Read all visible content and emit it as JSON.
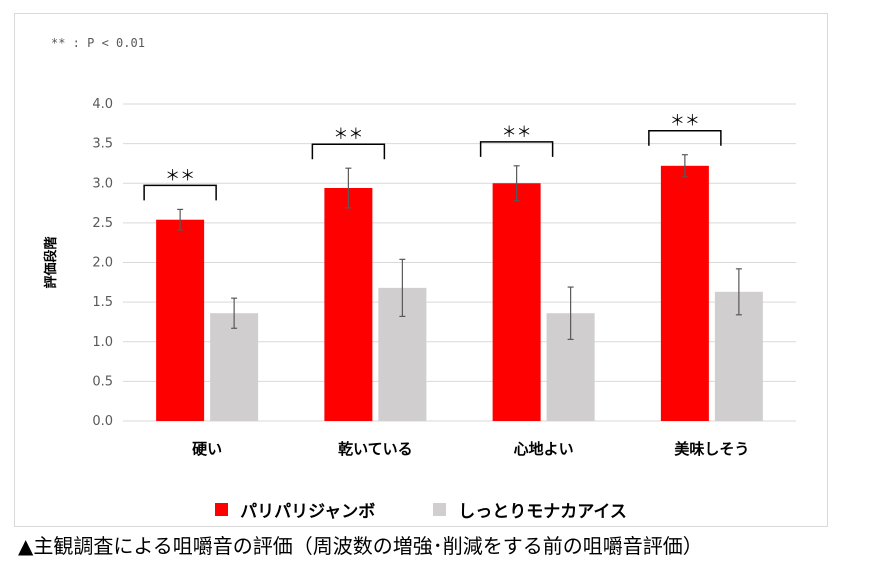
{
  "significance_note": "** : P < 0.01",
  "caption": "▲主観調査による咀嚼音の評価（周波数の増強･削減をする前の咀嚼音評価）",
  "chart_data": {
    "type": "bar",
    "title": "",
    "xlabel": "",
    "ylabel": "評価段階",
    "ylim": [
      0,
      4.0
    ],
    "yticks": [
      "0.0",
      "0.5",
      "1.0",
      "1.5",
      "2.0",
      "2.5",
      "3.0",
      "3.5",
      "4.0"
    ],
    "categories": [
      "硬い",
      "乾いている",
      "心地よい",
      "美味しそう"
    ],
    "series": [
      {
        "name": "パリパリジャンボ",
        "color": "#ff0000",
        "values": [
          2.54,
          2.94,
          3.0,
          3.22
        ],
        "errors": [
          0.13,
          0.25,
          0.22,
          0.14
        ]
      },
      {
        "name": "しっとりモナカアイス",
        "color": "#d0cece",
        "values": [
          1.36,
          1.68,
          1.36,
          1.63
        ],
        "errors": [
          0.19,
          0.36,
          0.33,
          0.29
        ]
      }
    ],
    "significance_marks": [
      "＊＊",
      "＊＊",
      "＊＊",
      "＊＊"
    ],
    "grid": true,
    "legend_position": "bottom"
  }
}
